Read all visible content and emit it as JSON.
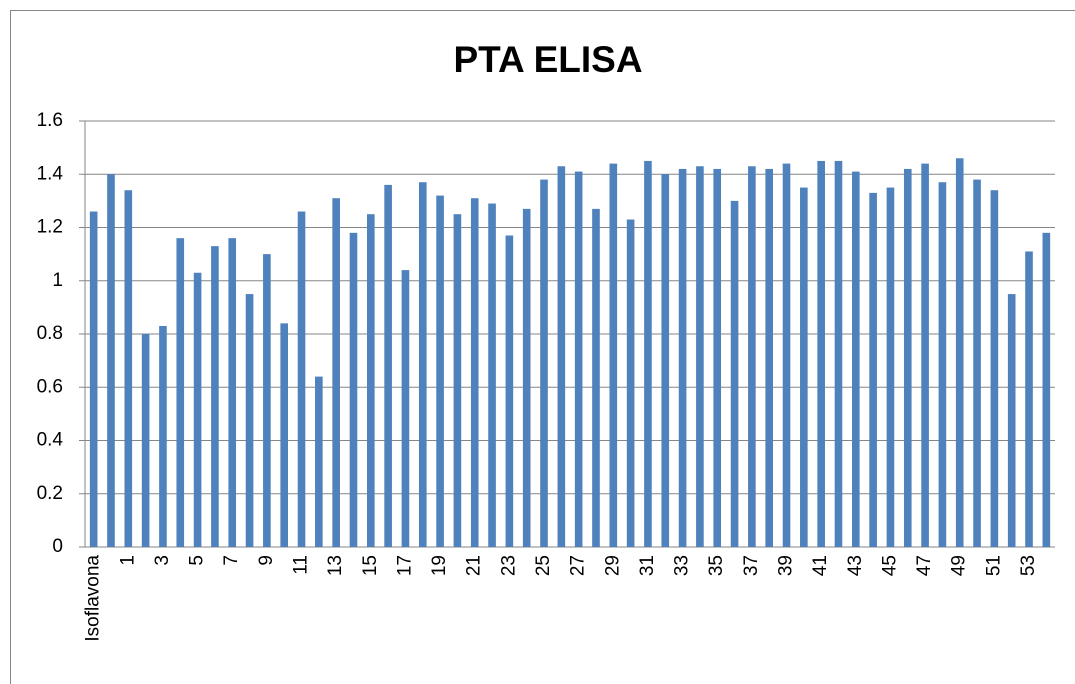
{
  "chart_data": {
    "type": "bar",
    "title": "PTA ELISA",
    "categories": [
      "Isoflavona",
      null,
      "1",
      null,
      "3",
      null,
      "5",
      null,
      "7",
      null,
      "9",
      null,
      "11",
      null,
      "13",
      null,
      "15",
      null,
      "17",
      null,
      "19",
      null,
      "21",
      null,
      "23",
      null,
      "25",
      null,
      "27",
      null,
      "29",
      null,
      "31",
      null,
      "33",
      null,
      "35",
      null,
      "37",
      null,
      "39",
      null,
      "41",
      null,
      "43",
      null,
      "45",
      null,
      "47",
      null,
      "49",
      null,
      "51",
      null,
      "53",
      null
    ],
    "values": [
      1.26,
      1.4,
      1.34,
      0.8,
      0.83,
      1.16,
      1.03,
      1.13,
      1.16,
      0.95,
      1.1,
      0.84,
      1.26,
      0.64,
      1.31,
      1.18,
      1.25,
      1.36,
      1.04,
      1.37,
      1.32,
      1.25,
      1.31,
      1.29,
      1.17,
      1.27,
      1.38,
      1.43,
      1.41,
      1.27,
      1.44,
      1.23,
      1.45,
      1.4,
      1.42,
      1.43,
      1.42,
      1.3,
      1.43,
      1.42,
      1.44,
      1.35,
      1.45,
      1.45,
      1.41,
      1.33,
      1.35,
      1.42,
      1.44,
      1.37,
      1.46,
      1.38,
      1.34,
      0.95,
      1.11,
      1.18
    ],
    "color": "#4f81bd",
    "ylim": [
      0,
      1.6
    ],
    "yticks": [
      0,
      0.2,
      0.4,
      0.6,
      0.8,
      1,
      1.2,
      1.4,
      1.6
    ],
    "grid": true
  }
}
